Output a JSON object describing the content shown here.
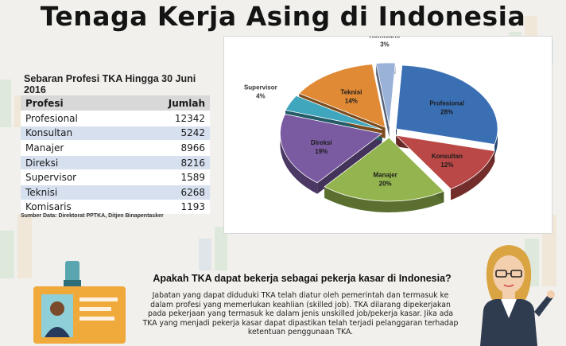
{
  "title": "Tenaga Kerja Asing di Indonesia",
  "table": {
    "caption": "Sebaran Profesi TKA Hingga 30 Juni 2016",
    "headers": [
      "Profesi",
      "Jumlah"
    ],
    "rows": [
      {
        "profesi": "Profesional",
        "jumlah": "12342"
      },
      {
        "profesi": "Konsultan",
        "jumlah": "5242"
      },
      {
        "profesi": "Manajer",
        "jumlah": "8966"
      },
      {
        "profesi": "Direksi",
        "jumlah": "8216"
      },
      {
        "profesi": "Supervisor",
        "jumlah": "1589"
      },
      {
        "profesi": "Teknisi",
        "jumlah": "6268"
      },
      {
        "profesi": "Komisaris",
        "jumlah": "1193"
      }
    ],
    "source": "Sumber Data: Direktorat PPTKA, Ditjen Binapentasker"
  },
  "chart_data": {
    "type": "pie",
    "style": "3d exploded",
    "slices": [
      {
        "label": "Profesional",
        "percent": 28,
        "value": 12342,
        "color": "#3a6fb4"
      },
      {
        "label": "Konsultan",
        "percent": 12,
        "value": 5242,
        "color": "#b94846"
      },
      {
        "label": "Manajer",
        "percent": 20,
        "value": 8966,
        "color": "#93b44e"
      },
      {
        "label": "Direksi",
        "percent": 19,
        "value": 8216,
        "color": "#7a5ba1"
      },
      {
        "label": "Supervisor",
        "percent": 4,
        "value": 1589,
        "color": "#3fa6bd"
      },
      {
        "label": "Teknisi",
        "percent": 14,
        "value": 6268,
        "color": "#e18a36"
      },
      {
        "label": "Komisaris",
        "percent": 3,
        "value": 1193,
        "color": "#9bb2d8"
      }
    ]
  },
  "info": {
    "question": "Apakah TKA dapat bekerja sebagai pekerja kasar di Indonesia?",
    "answer_lines": [
      "Jabatan yang dapat diduduki TKA telah diatur oleh pemerintah dan termasuk ke",
      "dalam profesi yang memerlukan keahlian (skilled job). TKA dilarang dipekerjakan",
      "pada pekerjaan yang termasuk ke dalam jenis unskilled job/pekerja kasar. Jika ada",
      "TKA yang menjadi pekerja kasar dapat dipastikan telah terjadi pelanggaran terhadap",
      "ketentuan penggunaan TKA."
    ]
  }
}
